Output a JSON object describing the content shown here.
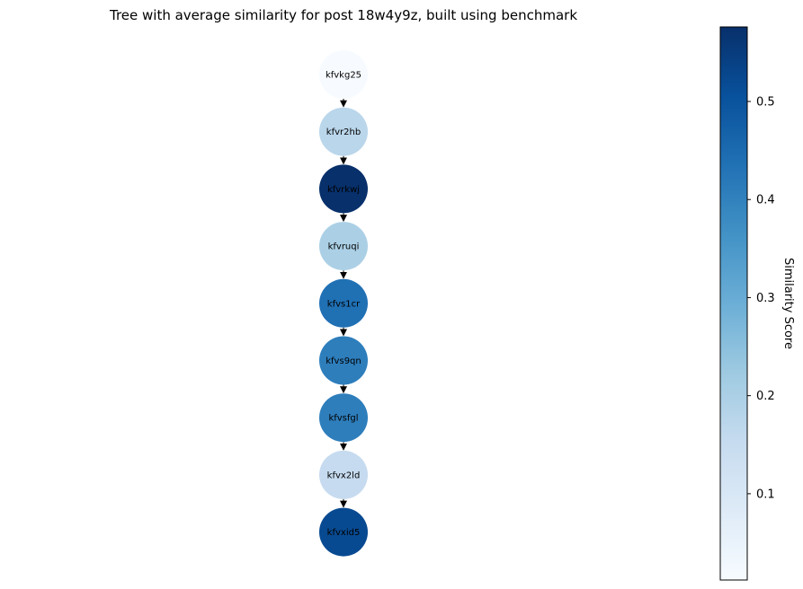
{
  "title": "Tree with average similarity for post 18w4y9z, built using benchmark",
  "colorbar": {
    "label": "Similarity Score",
    "ticks": [
      "0.1",
      "0.2",
      "0.3",
      "0.4",
      "0.5"
    ],
    "tick_values": [
      0.1,
      0.2,
      0.3,
      0.4,
      0.5
    ],
    "range": [
      0.012,
      0.576
    ],
    "colormap": "Blues",
    "colormap_stops": [
      "#f7fbff",
      "#deebf7",
      "#c6dbef",
      "#9ecae1",
      "#6baed6",
      "#4292c6",
      "#2171b5",
      "#08519c",
      "#08306b"
    ]
  },
  "tree": {
    "nodes": [
      {
        "label": "kfvkg25",
        "similarity": 0.012,
        "color": "#f7fbff"
      },
      {
        "label": "kfvr2hb",
        "similarity": 0.215,
        "color": "#bad6eb"
      },
      {
        "label": "kfvrkwj",
        "similarity": 0.576,
        "color": "#08306b"
      },
      {
        "label": "kfvruqi",
        "similarity": 0.235,
        "color": "#abd0e6"
      },
      {
        "label": "kfvs1cr",
        "similarity": 0.445,
        "color": "#2070b4"
      },
      {
        "label": "kfvs9qn",
        "similarity": 0.415,
        "color": "#2e7ebc"
      },
      {
        "label": "kfvsfgl",
        "similarity": 0.415,
        "color": "#2e7ebc"
      },
      {
        "label": "kfvx2ld",
        "similarity": 0.185,
        "color": "#c6dbef"
      },
      {
        "label": "kfvxid5",
        "similarity": 0.515,
        "color": "#084a91"
      }
    ],
    "edges": [
      [
        "kfvkg25",
        "kfvr2hb"
      ],
      [
        "kfvr2hb",
        "kfvrkwj"
      ],
      [
        "kfvrkwj",
        "kfvruqi"
      ],
      [
        "kfvruqi",
        "kfvs1cr"
      ],
      [
        "kfvs1cr",
        "kfvs9qn"
      ],
      [
        "kfvs9qn",
        "kfvsfgl"
      ],
      [
        "kfvsfgl",
        "kfvx2ld"
      ],
      [
        "kfvx2ld",
        "kfvxid5"
      ]
    ]
  }
}
